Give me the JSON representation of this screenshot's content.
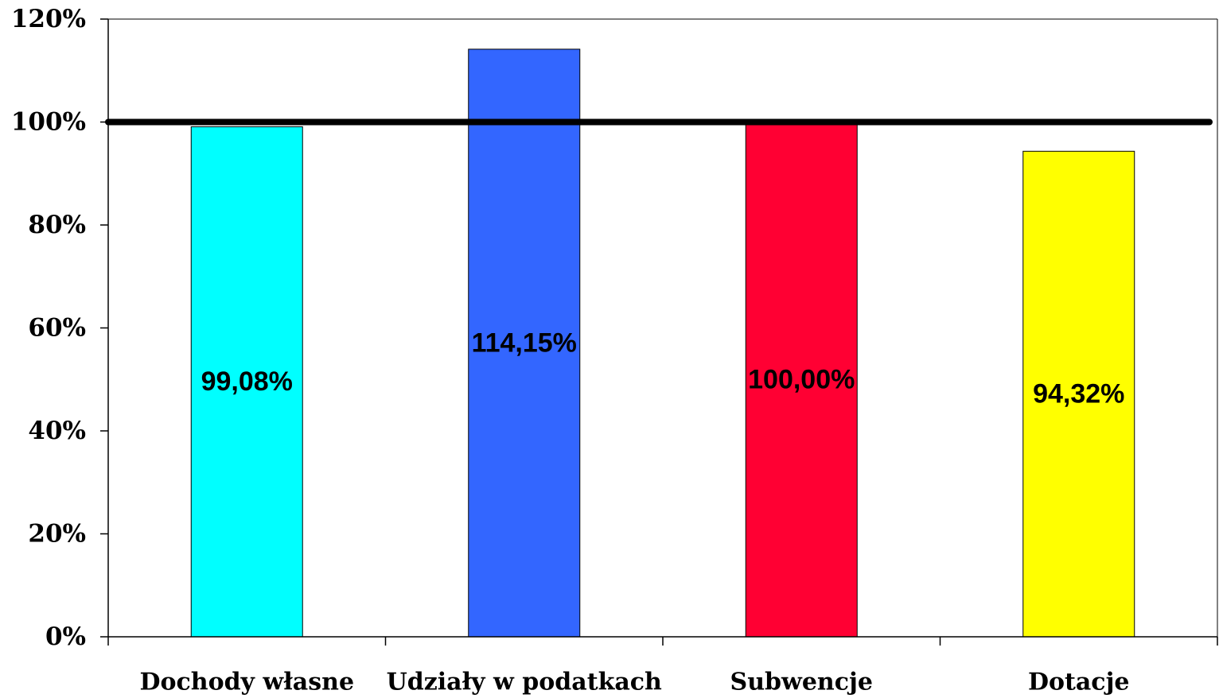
{
  "chart_data": {
    "type": "bar",
    "categories": [
      "Dochody własne",
      "Udziały w podatkach",
      "Subwencje",
      "Dotacje"
    ],
    "values": [
      99.08,
      114.15,
      100.0,
      94.32
    ],
    "data_labels": [
      "99,08%",
      "114,15%",
      "100,00%",
      "94,32%"
    ],
    "colors": [
      "#00ffff",
      "#3366ff",
      "#ff0033",
      "#ffff00"
    ],
    "yticks": [
      0,
      20,
      40,
      60,
      80,
      100,
      120
    ],
    "ytick_labels": [
      "0%",
      "20%",
      "40%",
      "60%",
      "80%",
      "100%",
      "120%"
    ],
    "ylim": [
      0,
      120
    ],
    "reference_line": 100,
    "grid": false,
    "title": "",
    "xlabel": "",
    "ylabel": ""
  }
}
